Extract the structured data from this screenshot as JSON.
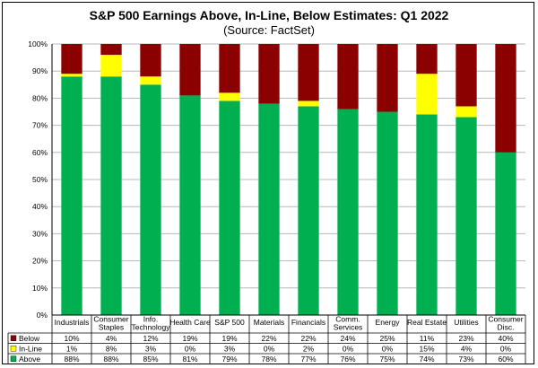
{
  "chart_data": {
    "type": "bar",
    "stacked": true,
    "title": "S&P 500 Earnings Above, In-Line, Below Estimates: Q1 2022",
    "subtitle": "(Source: FactSet)",
    "ylim": [
      0,
      100
    ],
    "yticks": [
      "0%",
      "10%",
      "20%",
      "30%",
      "40%",
      "50%",
      "60%",
      "70%",
      "80%",
      "90%",
      "100%"
    ],
    "grid": true,
    "categories": [
      [
        "Industrials"
      ],
      [
        "Consumer",
        "Staples"
      ],
      [
        "Info.",
        "Technology"
      ],
      [
        "Health Care"
      ],
      [
        "S&P 500"
      ],
      [
        "Materials"
      ],
      [
        "Financials"
      ],
      [
        "Comm.",
        "Services"
      ],
      [
        "Energy"
      ],
      [
        "Real Estate"
      ],
      [
        "Utilities"
      ],
      [
        "Consumer",
        "Disc."
      ]
    ],
    "series": [
      {
        "name": "Below",
        "color": "#8b0000",
        "values": [
          10,
          4,
          12,
          19,
          19,
          22,
          22,
          24,
          25,
          11,
          23,
          40
        ],
        "labels": [
          "10%",
          "4%",
          "12%",
          "19%",
          "19%",
          "22%",
          "22%",
          "24%",
          "25%",
          "11%",
          "23%",
          "40%"
        ]
      },
      {
        "name": "In-Line",
        "color": "#ffff00",
        "values": [
          1,
          8,
          3,
          0,
          3,
          0,
          2,
          0,
          0,
          15,
          4,
          0
        ],
        "labels": [
          "1%",
          "8%",
          "3%",
          "0%",
          "3%",
          "0%",
          "2%",
          "0%",
          "0%",
          "15%",
          "4%",
          "0%"
        ]
      },
      {
        "name": "Above",
        "color": "#00b050",
        "values": [
          88,
          88,
          85,
          81,
          79,
          78,
          77,
          76,
          75,
          74,
          73,
          60
        ],
        "labels": [
          "88%",
          "88%",
          "85%",
          "81%",
          "79%",
          "78%",
          "77%",
          "76%",
          "75%",
          "74%",
          "73%",
          "60%"
        ]
      }
    ]
  }
}
